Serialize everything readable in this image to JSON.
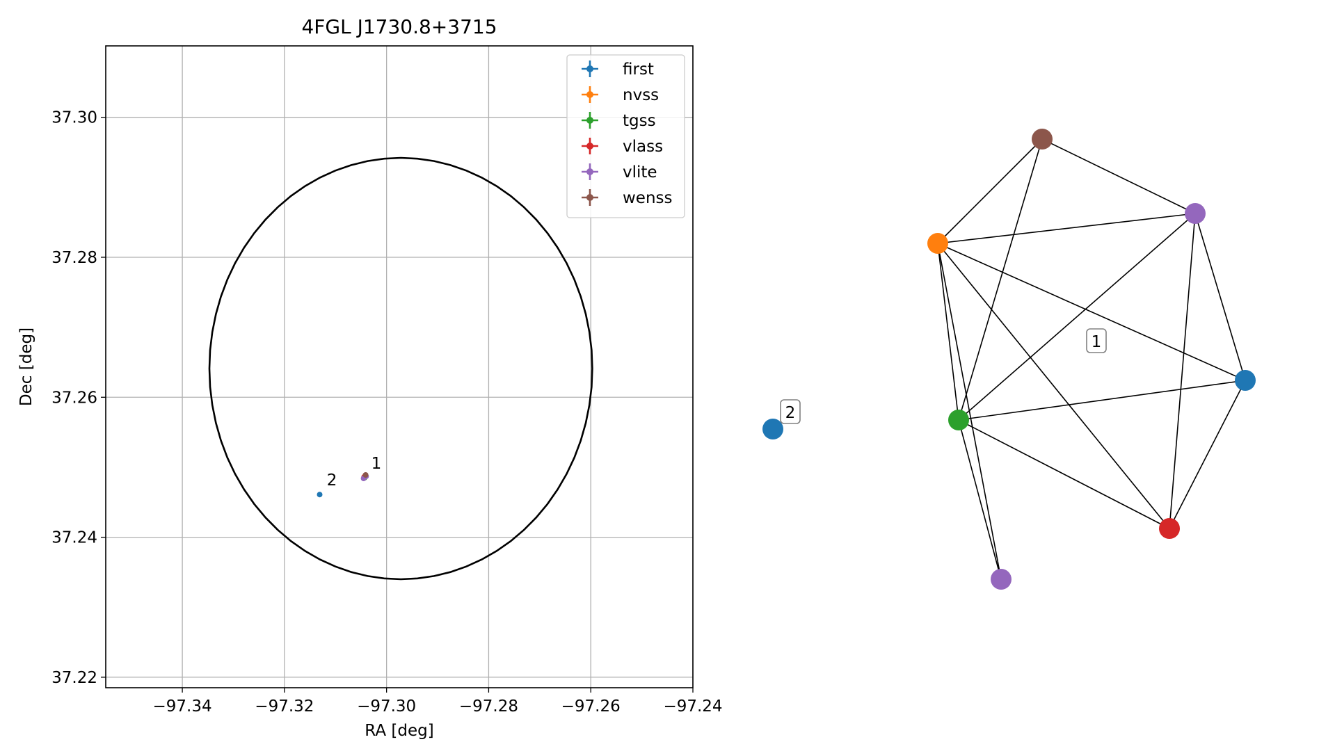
{
  "chart_data": [
    {
      "type": "scatter",
      "title": "4FGL J1730.8+3715",
      "xlabel": "RA [deg]",
      "ylabel": "Dec [deg]",
      "xlim": [
        -97.355,
        -97.24
      ],
      "ylim": [
        37.2185,
        37.3102
      ],
      "xticks": [
        -97.34,
        -97.32,
        -97.3,
        -97.28,
        -97.26,
        -97.24
      ],
      "xtick_labels": [
        "−97.34",
        "−97.32",
        "−97.30",
        "−97.28",
        "−97.26",
        "−97.24"
      ],
      "yticks": [
        37.22,
        37.24,
        37.26,
        37.28,
        37.3
      ],
      "ytick_labels": [
        "37.22",
        "37.24",
        "37.26",
        "37.28",
        "37.30"
      ],
      "grid": true,
      "legend_position": "top-right",
      "series": [
        {
          "name": "first",
          "color": "#1f77b4",
          "points": [
            {
              "x": -97.3131,
              "y": 37.2461
            },
            {
              "x": -97.3044,
              "y": 37.2486
            }
          ]
        },
        {
          "name": "nvss",
          "color": "#ff7f0e",
          "points": [
            {
              "x": -97.3042,
              "y": 37.2488
            }
          ]
        },
        {
          "name": "tgss",
          "color": "#2ca02c",
          "points": [
            {
              "x": -97.3043,
              "y": 37.2485
            }
          ]
        },
        {
          "name": "vlass",
          "color": "#d62728",
          "points": [
            {
              "x": -97.3044,
              "y": 37.2486
            }
          ]
        },
        {
          "name": "vlite",
          "color": "#9467bd",
          "points": [
            {
              "x": -97.3045,
              "y": 37.2484
            },
            {
              "x": -97.304,
              "y": 37.2487
            }
          ]
        },
        {
          "name": "wenss",
          "color": "#8c564b",
          "points": [
            {
              "x": -97.3041,
              "y": 37.2489
            }
          ]
        }
      ],
      "annotations": [
        {
          "text": "1",
          "x": -97.303,
          "y": 37.2498
        },
        {
          "text": "2",
          "x": -97.3117,
          "y": 37.2474
        }
      ],
      "ellipse": {
        "center_ra": -97.2972,
        "center_dec": 37.2641,
        "semi_axis_ra": 0.0375,
        "semi_axis_dec": 0.0301
      }
    },
    {
      "type": "diagram",
      "description_nodes": "association graph",
      "nodes": [
        {
          "id": "first-1",
          "color": "#1f77b4"
        },
        {
          "id": "nvss",
          "color": "#ff7f0e"
        },
        {
          "id": "tgss",
          "color": "#2ca02c"
        },
        {
          "id": "vlass",
          "color": "#d62728"
        },
        {
          "id": "vlite-1",
          "color": "#9467bd"
        },
        {
          "id": "vlite-2",
          "color": "#9467bd"
        },
        {
          "id": "wenss",
          "color": "#8c564b"
        },
        {
          "id": "first-2",
          "color": "#1f77b4"
        }
      ],
      "edges": [
        [
          "nvss",
          "wenss"
        ],
        [
          "nvss",
          "vlite-1"
        ],
        [
          "nvss",
          "first-1"
        ],
        [
          "nvss",
          "vlass"
        ],
        [
          "nvss",
          "tgss"
        ],
        [
          "nvss",
          "vlite-2"
        ],
        [
          "wenss",
          "vlite-1"
        ],
        [
          "wenss",
          "tgss"
        ],
        [
          "vlite-1",
          "tgss"
        ],
        [
          "vlite-1",
          "first-1"
        ],
        [
          "vlite-1",
          "vlass"
        ],
        [
          "first-1",
          "tgss"
        ],
        [
          "first-1",
          "vlass"
        ],
        [
          "tgss",
          "vlass"
        ],
        [
          "tgss",
          "vlite-2"
        ]
      ],
      "cluster_labels": [
        {
          "text": "1"
        },
        {
          "text": "2"
        }
      ]
    }
  ]
}
